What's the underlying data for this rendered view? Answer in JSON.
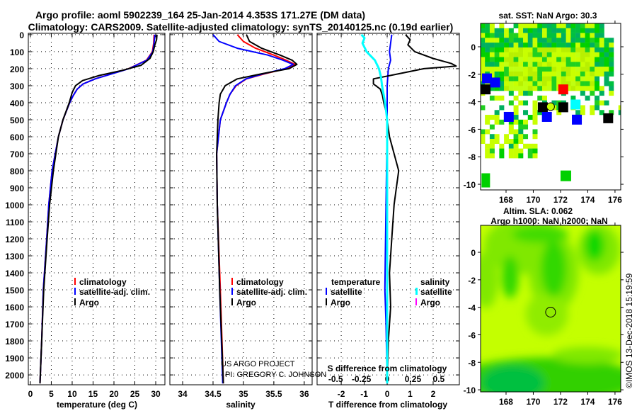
{
  "title": {
    "line1": "Argo profile: aoml 5902239_164 25-Jan-2014 4.353S 171.27E (DM data)",
    "line2": "Climatology: CARS2009. Satellite-adjusted climatology: synTS_20140125.nc (0.19d earlier)"
  },
  "depth_axis": {
    "ticks": [
      "0",
      "100",
      "200",
      "300",
      "400",
      "500",
      "600",
      "700",
      "800",
      "900",
      "1000",
      "1100",
      "1200",
      "1300",
      "1400",
      "1500",
      "1600",
      "1700",
      "1800",
      "1900",
      "2000"
    ],
    "ylim": [
      0,
      2060
    ]
  },
  "chart_data": [
    {
      "type": "line",
      "panel": "temperature",
      "xlabel": "temperature (deg C)",
      "xlim": [
        -0.5,
        32.2
      ],
      "xticks": [
        "0",
        "5",
        "10",
        "15",
        "20",
        "25",
        "30"
      ],
      "ylabel": "depth",
      "series": [
        {
          "name": "climatology",
          "color": "#ff0000",
          "depth": [
            0,
            50,
            100,
            150,
            200,
            230,
            260,
            290,
            320,
            360,
            400,
            500,
            600,
            800,
            1000,
            1200,
            1500,
            1800,
            2050
          ],
          "values": [
            29.6,
            29.5,
            29.2,
            27.8,
            23.5,
            19.5,
            15.5,
            12.6,
            11.2,
            10.2,
            9.4,
            7.8,
            6.7,
            5.2,
            4.4,
            3.9,
            3.1,
            2.7,
            2.3
          ]
        },
        {
          "name": "satellite-adj. clim.",
          "color": "#0000ff",
          "depth": [
            0,
            50,
            100,
            150,
            200,
            230,
            260,
            290,
            320,
            360,
            400,
            500,
            600,
            800,
            1000,
            1200,
            1500,
            1800,
            2050
          ],
          "values": [
            29.8,
            29.6,
            29.3,
            27.9,
            23.6,
            19.6,
            15.5,
            12.6,
            11.2,
            10.2,
            9.4,
            7.8,
            6.7,
            5.2,
            4.4,
            3.9,
            3.1,
            2.7,
            2.3
          ]
        },
        {
          "name": "Argo",
          "color": "#000000",
          "depth": [
            0,
            30,
            60,
            100,
            140,
            180,
            210,
            240,
            270,
            300,
            340,
            400,
            500,
            600,
            800,
            1000,
            1200,
            1500,
            1800,
            2050
          ],
          "values": [
            30.3,
            30.2,
            29.8,
            29.4,
            28.6,
            26.5,
            22.0,
            16.5,
            12.5,
            10.8,
            10.0,
            9.3,
            7.8,
            6.7,
            5.5,
            4.6,
            4.0,
            3.2,
            2.7,
            2.3
          ]
        }
      ]
    },
    {
      "type": "line",
      "panel": "salinity",
      "xlabel": "salinity",
      "xlim": [
        33.79,
        36.13
      ],
      "xticks": [
        "34",
        "34.5",
        "35",
        "35.5",
        "36"
      ],
      "series": [
        {
          "name": "climatology",
          "color": "#ff0000",
          "depth": [
            0,
            40,
            80,
            120,
            150,
            175,
            200,
            230,
            260,
            300,
            350,
            400,
            500,
            700,
            1000,
            1500,
            2050
          ],
          "values": [
            34.9,
            35.0,
            35.2,
            35.5,
            35.7,
            35.85,
            35.7,
            35.35,
            35.05,
            34.88,
            34.78,
            34.72,
            34.62,
            34.56,
            34.57,
            34.62,
            34.67
          ]
        },
        {
          "name": "satellite-adj. clim.",
          "color": "#0000ff",
          "depth": [
            0,
            40,
            80,
            120,
            150,
            175,
            200,
            230,
            260,
            300,
            350,
            400,
            500,
            700,
            1000,
            1500,
            2050
          ],
          "values": [
            34.5,
            34.6,
            34.9,
            35.4,
            35.65,
            35.82,
            35.68,
            35.33,
            35.04,
            34.87,
            34.78,
            34.72,
            34.62,
            34.56,
            34.57,
            34.61,
            34.66
          ]
        },
        {
          "name": "Argo",
          "color": "#000000",
          "depth": [
            0,
            40,
            80,
            120,
            150,
            175,
            200,
            230,
            260,
            300,
            350,
            400,
            500,
            700,
            1000,
            1500,
            2050
          ],
          "values": [
            35.05,
            35.1,
            35.3,
            35.6,
            35.8,
            35.88,
            35.75,
            35.3,
            34.9,
            34.7,
            34.62,
            34.6,
            34.58,
            34.56,
            34.57,
            34.61,
            34.67
          ]
        }
      ]
    },
    {
      "type": "line",
      "panel": "difference",
      "xlabel": "T difference from climatology",
      "xlim": [
        -3.05,
        3.14
      ],
      "xticks": [
        "-2",
        "-1",
        "0",
        "1",
        "2"
      ],
      "secondary_xlabel": "S difference from climatology",
      "secondary_xlim": [
        -0.68,
        0.7
      ],
      "secondary_xticks": [
        "-0.5",
        "-0.25",
        "0",
        "0.25",
        "0.5"
      ],
      "series": [
        {
          "name": "temperature satellite",
          "color": "#0000ff",
          "axis": "T",
          "depth": [
            0,
            50,
            100,
            150,
            200,
            300,
            400,
            500,
            700,
            1000,
            1300,
            1500,
            1700,
            2050
          ],
          "values": [
            0.2,
            0.15,
            0.1,
            0.15,
            0.05,
            0.0,
            0.0,
            0.0,
            -0.02,
            -0.05,
            -0.08,
            -0.1,
            -0.05,
            0.0
          ]
        },
        {
          "name": "temperature Argo",
          "color": "#000000",
          "axis": "T",
          "depth": [
            0,
            30,
            60,
            100,
            140,
            170,
            185,
            200,
            230,
            260,
            290,
            320,
            360,
            400,
            450,
            500,
            600,
            700,
            800,
            900,
            1000,
            1200,
            1400,
            1600,
            1800,
            2050
          ],
          "values": [
            0.8,
            1.0,
            0.9,
            1.2,
            2.0,
            2.8,
            3.0,
            1.6,
            0.5,
            -0.6,
            -0.6,
            -0.3,
            -0.2,
            -0.15,
            -0.05,
            0.0,
            0.1,
            0.3,
            0.5,
            0.4,
            0.3,
            0.2,
            0.1,
            0.15,
            0.05,
            0.0
          ]
        },
        {
          "name": "salinity satellite",
          "color": "#00ffff",
          "axis": "S",
          "depth": [
            0,
            20,
            50,
            100,
            150,
            200,
            250,
            300,
            400,
            500,
            700,
            1000,
            1500,
            2050
          ],
          "values": [
            -0.25,
            -0.22,
            -0.24,
            -0.2,
            -0.12,
            -0.08,
            -0.06,
            -0.05,
            -0.02,
            0.0,
            0.0,
            0.0,
            0.0,
            0.0
          ]
        },
        {
          "name": "salinity Argo",
          "color": "#ff00ff",
          "axis": "S",
          "depth": [],
          "values": []
        }
      ]
    }
  ],
  "legends": {
    "temperature": [
      "climatology",
      "satellite-adj. clim.",
      "Argo"
    ],
    "salinity": [
      "climatology",
      "satellite-adj. clim.",
      "Argo"
    ],
    "difference": {
      "temp_header": "temperature",
      "temp_items": [
        "satellite",
        "Argo"
      ],
      "sal_header": "salinity",
      "sal_items": [
        "satellite",
        "Argo"
      ]
    }
  },
  "credits": {
    "project": "US ARGO PROJECT",
    "pi": "PI: GREGORY C. JOHNSON"
  },
  "maps": {
    "sst": {
      "title": "sat. SST: NaN Argo: 30.3",
      "lon_ticks": [
        "168",
        "170",
        "172",
        "174",
        "176"
      ],
      "lat_ticks": [
        "0",
        "-2",
        "-4",
        "-6",
        "-8",
        "-10"
      ],
      "lon_range": [
        166.13,
        176.42
      ],
      "lat_range": [
        -10.41,
        1.7
      ],
      "argo_position": {
        "lon": 171.27,
        "lat": -4.353
      },
      "floats": [
        {
          "lon": 172.2,
          "lat": -3.1,
          "color": "#ff0000"
        },
        {
          "lon": 166.5,
          "lat": -3.1,
          "color": "#000000"
        },
        {
          "lon": 170.7,
          "lat": -4.4,
          "color": "#000000"
        },
        {
          "lon": 172.2,
          "lat": -4.4,
          "color": "#000000"
        },
        {
          "lon": 175.5,
          "lat": -5.2,
          "color": "#000000"
        },
        {
          "lon": 168.2,
          "lat": -5.1,
          "color": "#0000ff"
        },
        {
          "lon": 171.0,
          "lat": -5.1,
          "color": "#0000ff"
        },
        {
          "lon": 173.2,
          "lat": -5.3,
          "color": "#0000ff"
        },
        {
          "lon": 173.1,
          "lat": -4.2,
          "color": "#00ffff"
        },
        {
          "lon": 166.6,
          "lat": -2.3,
          "color": "#0000ff"
        },
        {
          "lon": 167.2,
          "lat": -2.6,
          "color": "#0000ff"
        }
      ]
    },
    "sla": {
      "title1": "Altim. SLA: 0.062",
      "title2": "Argo h1000: NaN h2000: NaN",
      "lon_ticks": [
        "168",
        "170",
        "172",
        "174",
        "176"
      ],
      "lat_ticks": [
        "0",
        "-2",
        "-4",
        "-6",
        "-8",
        "-10"
      ],
      "lon_range": [
        166.13,
        176.42
      ],
      "lat_range": [
        -10.15,
        1.96
      ],
      "argo_position": {
        "lon": 171.27,
        "lat": -4.353
      }
    }
  },
  "copyright": "©IMOS 13-Dec-2018 15:19:59"
}
